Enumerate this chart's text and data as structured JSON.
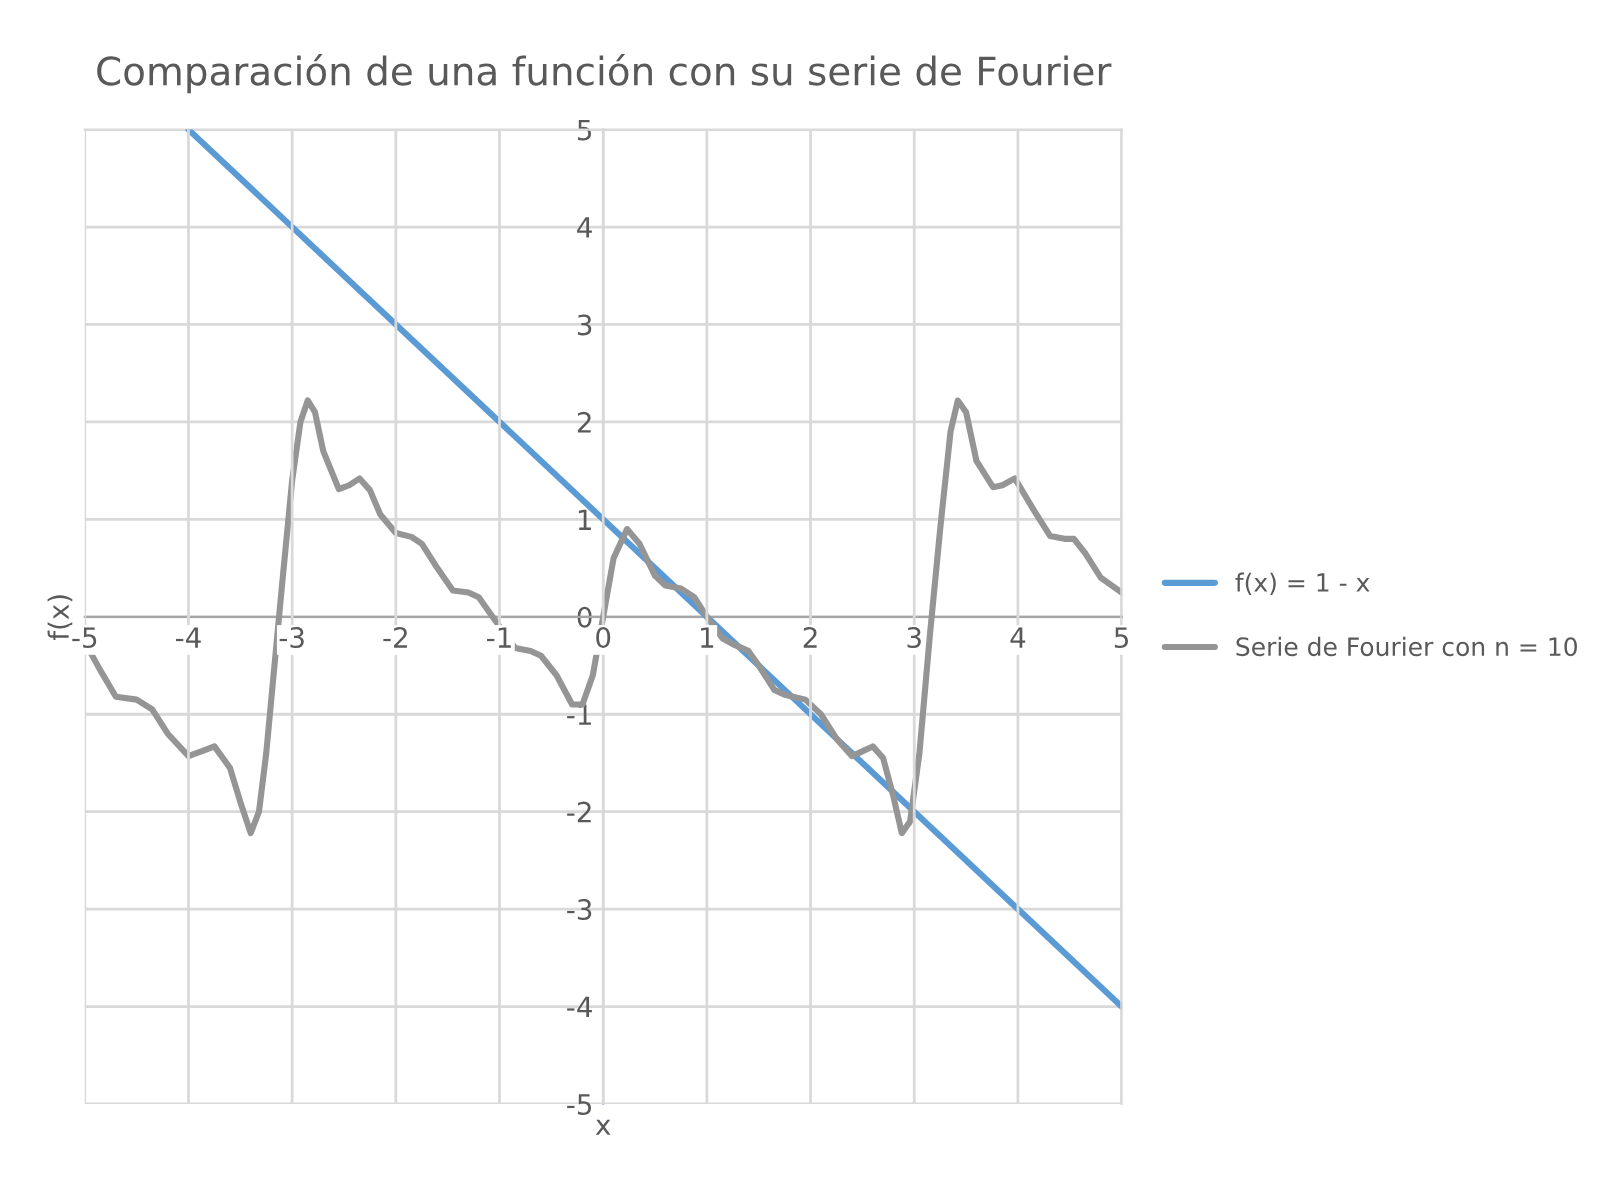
{
  "chart_data": {
    "type": "line",
    "title": "Comparación de una función con su serie de Fourier",
    "xlabel": "x",
    "ylabel": "f(x)",
    "series": [
      {
        "name": "f(x) = 1 - x",
        "color": "#5b9bd5",
        "x": [
          -4,
          5
        ],
        "values": [
          5,
          -4
        ]
      },
      {
        "name": "Serie de Fourier con n = 10",
        "color": "#959595",
        "x": [
          -5,
          -4.85,
          -4.7,
          -4.5,
          -4.35,
          -4.2,
          -4.0,
          -3.85,
          -3.75,
          -3.6,
          -3.5,
          -3.4,
          -3.32,
          -3.25,
          -3.1,
          -3.0,
          -2.92,
          -2.85,
          -2.78,
          -2.7,
          -2.55,
          -2.45,
          -2.35,
          -2.25,
          -2.15,
          -2.0,
          -1.85,
          -1.75,
          -1.6,
          -1.45,
          -1.3,
          -1.2,
          -1.1,
          -1.0,
          -0.85,
          -0.7,
          -0.6,
          -0.45,
          -0.3,
          -0.2,
          -0.1,
          0,
          0.1,
          0.23,
          0.35,
          0.5,
          0.6,
          0.75,
          0.88,
          1.0,
          1.15,
          1.25,
          1.4,
          1.5,
          1.65,
          1.75,
          1.95,
          2.1,
          2.25,
          2.4,
          2.6,
          2.7,
          2.8,
          2.88,
          2.96,
          3.05,
          3.15,
          3.25,
          3.35,
          3.42,
          3.5,
          3.6,
          3.76,
          3.85,
          3.97,
          4.15,
          4.31,
          4.45,
          4.54,
          4.65,
          4.8,
          5
        ],
        "values": [
          -0.26,
          -0.55,
          -0.82,
          -0.85,
          -0.95,
          -1.2,
          -1.43,
          -1.37,
          -1.33,
          -1.55,
          -1.9,
          -2.22,
          -2.0,
          -1.4,
          0.3,
          1.4,
          2.0,
          2.22,
          2.1,
          1.7,
          1.31,
          1.35,
          1.42,
          1.3,
          1.05,
          0.86,
          0.82,
          0.75,
          0.5,
          0.27,
          0.25,
          0.2,
          0.05,
          -0.1,
          -0.32,
          -0.35,
          -0.4,
          -0.6,
          -0.9,
          -0.9,
          -0.6,
          0,
          0.6,
          0.9,
          0.75,
          0.42,
          0.32,
          0.29,
          0.2,
          0.0,
          -0.22,
          -0.28,
          -0.35,
          -0.5,
          -0.75,
          -0.8,
          -0.85,
          -1.0,
          -1.25,
          -1.43,
          -1.33,
          -1.45,
          -1.85,
          -2.22,
          -2.1,
          -1.4,
          -0.2,
          0.9,
          1.9,
          2.22,
          2.1,
          1.6,
          1.33,
          1.35,
          1.42,
          1.1,
          0.83,
          0.8,
          0.8,
          0.65,
          0.4,
          0.25
        ]
      }
    ],
    "xlim": [
      -5,
      5
    ],
    "ylim": [
      -5,
      5
    ],
    "xticks": [
      -5,
      -4,
      -3,
      -2,
      -1,
      0,
      1,
      2,
      3,
      4,
      5
    ],
    "yticks": [
      -5,
      -4,
      -3,
      -2,
      -1,
      0,
      1,
      2,
      3,
      4,
      5
    ],
    "grid": true,
    "legend": "right",
    "marker": "none",
    "line_style": "solid"
  }
}
